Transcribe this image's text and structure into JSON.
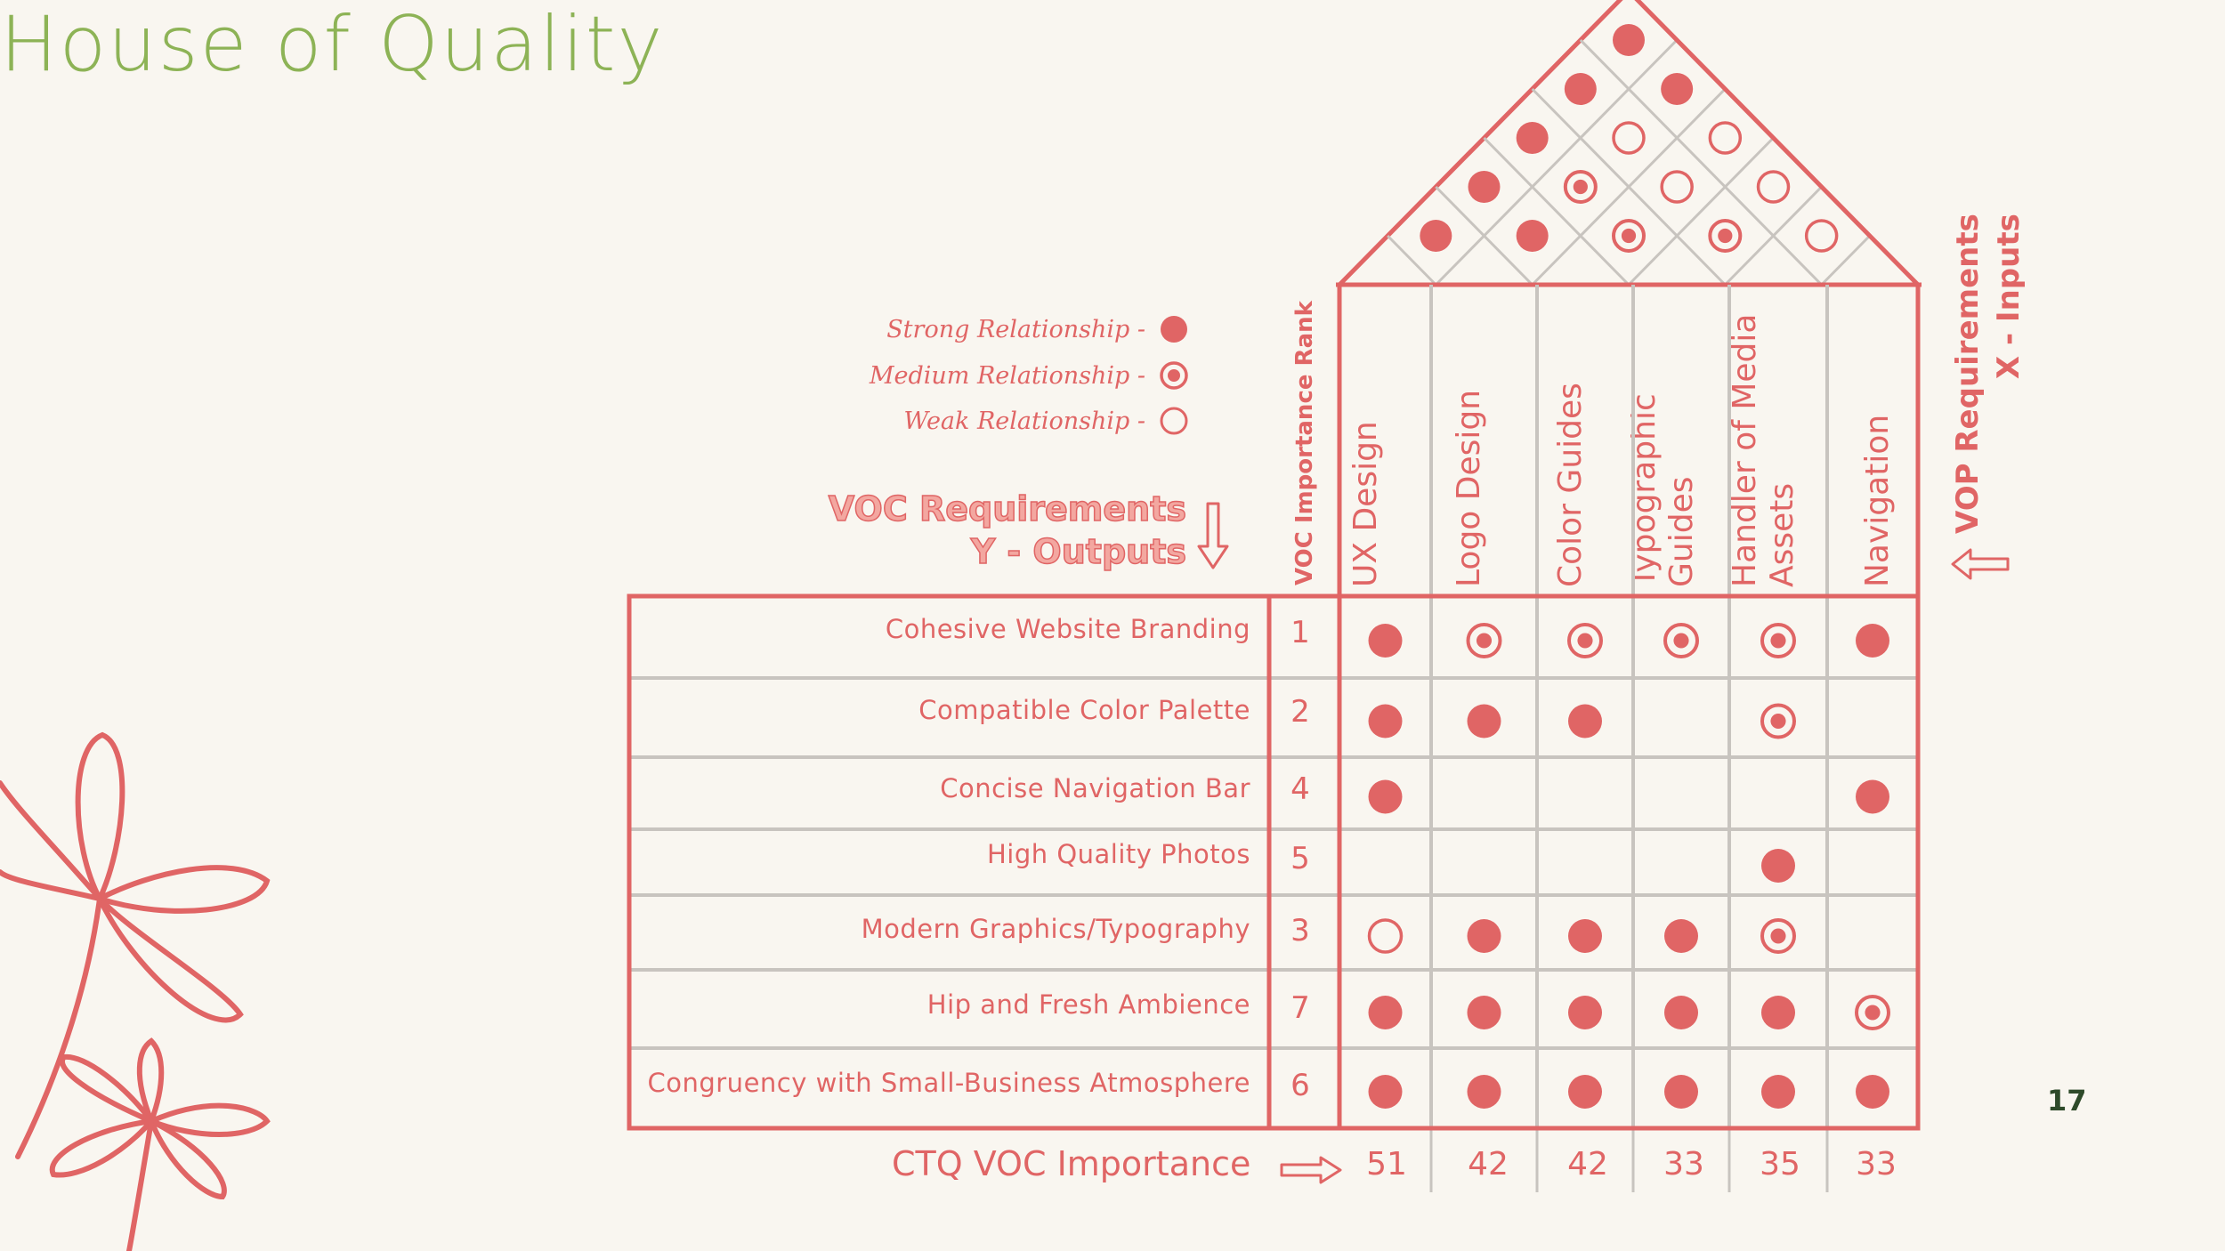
{
  "slide": {
    "title": "House of Quality",
    "page_number": "17"
  },
  "legend": [
    {
      "label": "Strong Relationship -",
      "symbol": "strong"
    },
    {
      "label": "Medium Relationship -",
      "symbol": "medium"
    },
    {
      "label": "Weak Relationship -",
      "symbol": "weak"
    }
  ],
  "voc_heading": {
    "line1": "VOC Requirements",
    "line2": "Y - Outputs"
  },
  "rank_header": "VOC Importance Rank",
  "vop_heading": {
    "line1": "VOP Requirements",
    "line2": "X - Inputs"
  },
  "columns": [
    {
      "lines": [
        "UX Design"
      ]
    },
    {
      "lines": [
        "Logo Design"
      ]
    },
    {
      "lines": [
        "Color Guides"
      ]
    },
    {
      "lines": [
        "Typographic",
        "Guides"
      ]
    },
    {
      "lines": [
        "Handler of Media",
        "Assets"
      ]
    },
    {
      "lines": [
        "Navigation"
      ]
    }
  ],
  "rows": [
    {
      "requirement": "Cohesive Website Branding",
      "rank": "1",
      "cells": [
        "strong",
        "medium",
        "medium",
        "medium",
        "medium",
        "strong"
      ]
    },
    {
      "requirement": "Compatible Color Palette",
      "rank": "2",
      "cells": [
        "strong",
        "strong",
        "strong",
        "",
        "medium",
        ""
      ]
    },
    {
      "requirement": "Concise Navigation Bar",
      "rank": "4",
      "cells": [
        "strong",
        "",
        "",
        "",
        "",
        "strong"
      ]
    },
    {
      "requirement": "High Quality Photos",
      "rank": "5",
      "cells": [
        "",
        "",
        "",
        "",
        "strong",
        ""
      ]
    },
    {
      "requirement": "Modern Graphics/Typography",
      "rank": "3",
      "cells": [
        "weak",
        "strong",
        "strong",
        "strong",
        "medium",
        ""
      ]
    },
    {
      "requirement": "Hip and Fresh Ambience",
      "rank": "7",
      "cells": [
        "strong",
        "strong",
        "strong",
        "strong",
        "strong",
        "medium"
      ]
    },
    {
      "requirement": "Congruency with Small-Business Atmosphere",
      "rank": "6",
      "cells": [
        "strong",
        "strong",
        "strong",
        "strong",
        "strong",
        "strong"
      ]
    }
  ],
  "roof": [
    {
      "pair": [
        1,
        2
      ],
      "symbol": "strong"
    },
    {
      "pair": [
        2,
        3
      ],
      "symbol": "strong"
    },
    {
      "pair": [
        3,
        4
      ],
      "symbol": "medium"
    },
    {
      "pair": [
        4,
        5
      ],
      "symbol": "medium"
    },
    {
      "pair": [
        5,
        6
      ],
      "symbol": "weak"
    },
    {
      "pair": [
        1,
        3
      ],
      "symbol": "strong"
    },
    {
      "pair": [
        2,
        4
      ],
      "symbol": "medium"
    },
    {
      "pair": [
        3,
        5
      ],
      "symbol": "weak"
    },
    {
      "pair": [
        4,
        6
      ],
      "symbol": "weak"
    },
    {
      "pair": [
        1,
        4
      ],
      "symbol": "strong"
    },
    {
      "pair": [
        2,
        5
      ],
      "symbol": "weak"
    },
    {
      "pair": [
        3,
        6
      ],
      "symbol": "weak"
    },
    {
      "pair": [
        1,
        5
      ],
      "symbol": "strong"
    },
    {
      "pair": [
        2,
        6
      ],
      "symbol": "strong"
    },
    {
      "pair": [
        1,
        6
      ],
      "symbol": "strong"
    }
  ],
  "ctq": {
    "label": "CTQ VOC Importance",
    "values": [
      "51",
      "42",
      "42",
      "33",
      "35",
      "33"
    ]
  },
  "colors": {
    "accent": "#e06565",
    "title_green": "#8db356",
    "grid_gray": "#c8c4bf",
    "background": "#f9f6f0"
  }
}
